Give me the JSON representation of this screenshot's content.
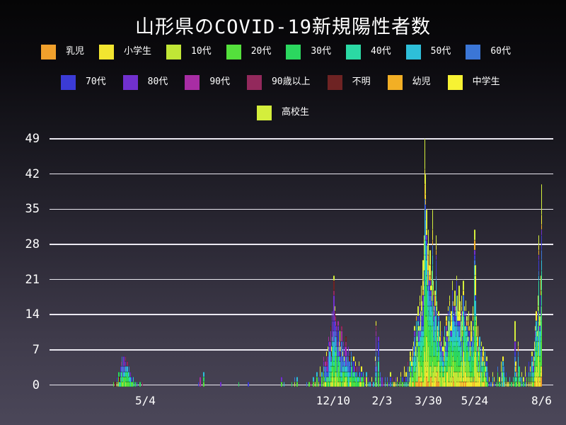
{
  "chart_data": {
    "type": "bar",
    "stacked": true,
    "title": "山形県のCOVID-19新規陽性者数",
    "xlabel": "",
    "ylabel": "",
    "ylim": [
      0,
      49
    ],
    "yticks": [
      0,
      7,
      14,
      21,
      28,
      35,
      42,
      49
    ],
    "grid": "horizontal",
    "legend_position": "top",
    "xticks": [
      {
        "label": "5/4",
        "day": 112
      },
      {
        "label": "12/10",
        "day": 331
      },
      {
        "label": "2/3",
        "day": 388
      },
      {
        "label": "3/30",
        "day": 442
      },
      {
        "label": "5/24",
        "day": 496
      },
      {
        "label": "8/6",
        "day": 574
      }
    ],
    "categories": [
      {
        "label": "乳児",
        "color": "#F0A02C"
      },
      {
        "label": "小学生",
        "color": "#F2E530"
      },
      {
        "label": "10代",
        "color": "#C0E636"
      },
      {
        "label": "20代",
        "color": "#54E03C"
      },
      {
        "label": "30代",
        "color": "#2BD75F"
      },
      {
        "label": "40代",
        "color": "#2BD9A4"
      },
      {
        "label": "50代",
        "color": "#2EBFD9"
      },
      {
        "label": "60代",
        "color": "#3B76D6"
      },
      {
        "label": "70代",
        "color": "#3B3BD6"
      },
      {
        "label": "80代",
        "color": "#7130CE"
      },
      {
        "label": "90代",
        "color": "#A82DA4"
      },
      {
        "label": "90歳以上",
        "color": "#93295C"
      },
      {
        "label": "不明",
        "color": "#6E2323"
      },
      {
        "label": "幼児",
        "color": "#F2AF25"
      },
      {
        "label": "中学生",
        "color": "#F7F233"
      },
      {
        "label": "高校生",
        "color": "#D4EE3C"
      }
    ],
    "era_weights": [
      {
        "until": 301,
        "weights": [
          0,
          0,
          1,
          3,
          3,
          2,
          3,
          3,
          2,
          2,
          1,
          1,
          1,
          0,
          0,
          0
        ]
      },
      {
        "until": 420,
        "weights": [
          0,
          1,
          2,
          4,
          4,
          3,
          4,
          4,
          3,
          3,
          2,
          1,
          1,
          0,
          1,
          1
        ]
      },
      {
        "until": 600,
        "weights": [
          1,
          2,
          4,
          5,
          5,
          4,
          4,
          3,
          2,
          1,
          0,
          0,
          0,
          1,
          2,
          4
        ]
      }
    ],
    "bars": [
      [
        75,
        1
      ],
      [
        77,
        1
      ],
      [
        79,
        2
      ],
      [
        81,
        3
      ],
      [
        82,
        2
      ],
      [
        83,
        4
      ],
      [
        84,
        5
      ],
      [
        85,
        6
      ],
      [
        86,
        4
      ],
      [
        87,
        6
      ],
      [
        88,
        5
      ],
      [
        89,
        6
      ],
      [
        90,
        4
      ],
      [
        91,
        5
      ],
      [
        92,
        3
      ],
      [
        93,
        4
      ],
      [
        94,
        2
      ],
      [
        95,
        3
      ],
      [
        96,
        2
      ],
      [
        97,
        1
      ],
      [
        98,
        2
      ],
      [
        100,
        1
      ],
      [
        102,
        1
      ],
      [
        106,
        1
      ],
      [
        109,
        1
      ],
      [
        174,
        1
      ],
      [
        176,
        2
      ],
      [
        180,
        3
      ],
      [
        200,
        1
      ],
      [
        221,
        1
      ],
      [
        232,
        1
      ],
      [
        271,
        2
      ],
      [
        274,
        1
      ],
      [
        283,
        1
      ],
      [
        286,
        2
      ],
      [
        289,
        2
      ],
      [
        300,
        1
      ],
      [
        303,
        1
      ],
      [
        305,
        1
      ],
      [
        308,
        2
      ],
      [
        310,
        1
      ],
      [
        312,
        3
      ],
      [
        314,
        2
      ],
      [
        316,
        4
      ],
      [
        318,
        3
      ],
      [
        320,
        6
      ],
      [
        321,
        4
      ],
      [
        322,
        5
      ],
      [
        323,
        7
      ],
      [
        324,
        5
      ],
      [
        325,
        8
      ],
      [
        326,
        10
      ],
      [
        327,
        9
      ],
      [
        328,
        12
      ],
      [
        329,
        8
      ],
      [
        330,
        15
      ],
      [
        331,
        13
      ],
      [
        332,
        22
      ],
      [
        333,
        16
      ],
      [
        334,
        14
      ],
      [
        335,
        12
      ],
      [
        336,
        10
      ],
      [
        337,
        13
      ],
      [
        338,
        9
      ],
      [
        339,
        11
      ],
      [
        340,
        8
      ],
      [
        341,
        12
      ],
      [
        342,
        7
      ],
      [
        343,
        9
      ],
      [
        344,
        6
      ],
      [
        345,
        8
      ],
      [
        346,
        10
      ],
      [
        347,
        7
      ],
      [
        348,
        5
      ],
      [
        349,
        8
      ],
      [
        350,
        6
      ],
      [
        351,
        4
      ],
      [
        352,
        7
      ],
      [
        353,
        5
      ],
      [
        354,
        3
      ],
      [
        355,
        6
      ],
      [
        356,
        4
      ],
      [
        357,
        5
      ],
      [
        358,
        3
      ],
      [
        359,
        4
      ],
      [
        360,
        2
      ],
      [
        361,
        5
      ],
      [
        362,
        3
      ],
      [
        363,
        2
      ],
      [
        364,
        4
      ],
      [
        365,
        2
      ],
      [
        366,
        3
      ],
      [
        367,
        1
      ],
      [
        368,
        2
      ],
      [
        370,
        3
      ],
      [
        372,
        2
      ],
      [
        374,
        1
      ],
      [
        376,
        2
      ],
      [
        378,
        1
      ],
      [
        380,
        6
      ],
      [
        381,
        13
      ],
      [
        382,
        4
      ],
      [
        384,
        10
      ],
      [
        386,
        3
      ],
      [
        388,
        2
      ],
      [
        390,
        1
      ],
      [
        392,
        2
      ],
      [
        394,
        2
      ],
      [
        396,
        1
      ],
      [
        398,
        3
      ],
      [
        400,
        2
      ],
      [
        402,
        1
      ],
      [
        404,
        2
      ],
      [
        406,
        2
      ],
      [
        408,
        1
      ],
      [
        410,
        3
      ],
      [
        412,
        2
      ],
      [
        414,
        4
      ],
      [
        416,
        3
      ],
      [
        418,
        5
      ],
      [
        420,
        4
      ],
      [
        421,
        7
      ],
      [
        422,
        5
      ],
      [
        423,
        6
      ],
      [
        424,
        8
      ],
      [
        425,
        9
      ],
      [
        426,
        12
      ],
      [
        427,
        8
      ],
      [
        428,
        14
      ],
      [
        429,
        10
      ],
      [
        430,
        16
      ],
      [
        431,
        12
      ],
      [
        432,
        18
      ],
      [
        433,
        15
      ],
      [
        434,
        20
      ],
      [
        435,
        17
      ],
      [
        436,
        25
      ],
      [
        437,
        30
      ],
      [
        438,
        49
      ],
      [
        439,
        42
      ],
      [
        440,
        35
      ],
      [
        441,
        28
      ],
      [
        442,
        31
      ],
      [
        443,
        24
      ],
      [
        444,
        27
      ],
      [
        445,
        20
      ],
      [
        446,
        23
      ],
      [
        447,
        35
      ],
      [
        448,
        21
      ],
      [
        449,
        16
      ],
      [
        450,
        19
      ],
      [
        451,
        30
      ],
      [
        452,
        17
      ],
      [
        453,
        12
      ],
      [
        454,
        15
      ],
      [
        455,
        10
      ],
      [
        456,
        13
      ],
      [
        457,
        9
      ],
      [
        458,
        11
      ],
      [
        459,
        8
      ],
      [
        460,
        10
      ],
      [
        461,
        12
      ],
      [
        462,
        9
      ],
      [
        463,
        14
      ],
      [
        464,
        11
      ],
      [
        465,
        16
      ],
      [
        466,
        13
      ],
      [
        467,
        18
      ],
      [
        468,
        12
      ],
      [
        469,
        15
      ],
      [
        470,
        21
      ],
      [
        471,
        17
      ],
      [
        472,
        14
      ],
      [
        473,
        19
      ],
      [
        474,
        16
      ],
      [
        475,
        22
      ],
      [
        476,
        18
      ],
      [
        477,
        15
      ],
      [
        478,
        20
      ],
      [
        479,
        17
      ],
      [
        480,
        13
      ],
      [
        481,
        18
      ],
      [
        482,
        15
      ],
      [
        483,
        21
      ],
      [
        484,
        16
      ],
      [
        485,
        12
      ],
      [
        486,
        17
      ],
      [
        487,
        14
      ],
      [
        488,
        10
      ],
      [
        489,
        15
      ],
      [
        490,
        12
      ],
      [
        491,
        9
      ],
      [
        492,
        13
      ],
      [
        493,
        10
      ],
      [
        494,
        16
      ],
      [
        495,
        12
      ],
      [
        496,
        31
      ],
      [
        497,
        24
      ],
      [
        498,
        14
      ],
      [
        499,
        10
      ],
      [
        500,
        12
      ],
      [
        501,
        8
      ],
      [
        502,
        10
      ],
      [
        503,
        7
      ],
      [
        504,
        9
      ],
      [
        505,
        6
      ],
      [
        506,
        8
      ],
      [
        507,
        5
      ],
      [
        508,
        7
      ],
      [
        509,
        4
      ],
      [
        510,
        6
      ],
      [
        511,
        3
      ],
      [
        513,
        2
      ],
      [
        515,
        1
      ],
      [
        517,
        3
      ],
      [
        519,
        2
      ],
      [
        521,
        1
      ],
      [
        523,
        4
      ],
      [
        525,
        2
      ],
      [
        527,
        5
      ],
      [
        528,
        3
      ],
      [
        529,
        6
      ],
      [
        530,
        4
      ],
      [
        531,
        2
      ],
      [
        533,
        3
      ],
      [
        535,
        1
      ],
      [
        537,
        2
      ],
      [
        539,
        1
      ],
      [
        541,
        2
      ],
      [
        543,
        13
      ],
      [
        544,
        5
      ],
      [
        545,
        3
      ],
      [
        547,
        9
      ],
      [
        548,
        4
      ],
      [
        549,
        2
      ],
      [
        551,
        3
      ],
      [
        553,
        2
      ],
      [
        555,
        4
      ],
      [
        557,
        3
      ],
      [
        559,
        5
      ],
      [
        561,
        4
      ],
      [
        563,
        7
      ],
      [
        564,
        5
      ],
      [
        565,
        6
      ],
      [
        566,
        9
      ],
      [
        567,
        12
      ],
      [
        568,
        15
      ],
      [
        569,
        11
      ],
      [
        570,
        18
      ],
      [
        571,
        30
      ],
      [
        572,
        14
      ],
      [
        573,
        22
      ],
      [
        574,
        40
      ]
    ]
  },
  "legend": {
    "rows": [
      [
        0,
        1,
        2,
        3,
        4,
        5,
        6,
        7
      ],
      [
        8,
        9,
        10,
        11,
        12,
        13,
        14
      ],
      [
        15
      ]
    ]
  },
  "colors": {
    "background_top": "#050506",
    "background_bottom": "#4B4759",
    "gridline": "#EBE9F1",
    "text": "#FFFFFF"
  }
}
